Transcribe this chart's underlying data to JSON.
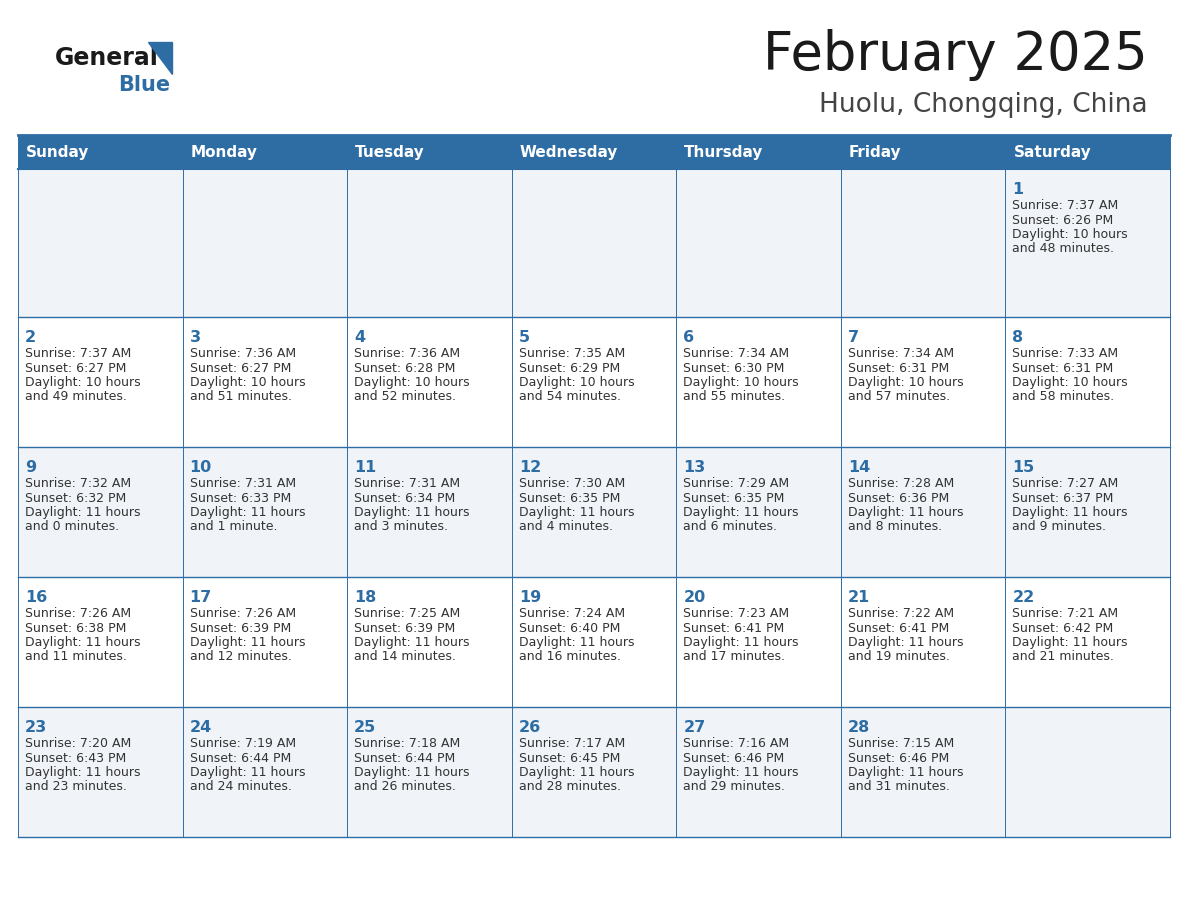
{
  "title": "February 2025",
  "subtitle": "Huolu, Chongqing, China",
  "days_of_week": [
    "Sunday",
    "Monday",
    "Tuesday",
    "Wednesday",
    "Thursday",
    "Friday",
    "Saturday"
  ],
  "header_bg": "#2E6DA4",
  "header_text": "#FFFFFF",
  "cell_bg_light": "#F0F4F8",
  "cell_bg_white": "#FFFFFF",
  "border_color": "#2E6DA4",
  "title_color": "#1a1a1a",
  "subtitle_color": "#444444",
  "day_num_color": "#2E6DA4",
  "cell_text_color": "#333333",
  "logo_general_color": "#1a1a1a",
  "logo_blue_color": "#2E6DA4",
  "calendar_data": [
    [
      null,
      null,
      null,
      null,
      null,
      null,
      {
        "day": 1,
        "sunrise": "7:37 AM",
        "sunset": "6:26 PM",
        "daylight": "10 hours\nand 48 minutes."
      }
    ],
    [
      {
        "day": 2,
        "sunrise": "7:37 AM",
        "sunset": "6:27 PM",
        "daylight": "10 hours\nand 49 minutes."
      },
      {
        "day": 3,
        "sunrise": "7:36 AM",
        "sunset": "6:27 PM",
        "daylight": "10 hours\nand 51 minutes."
      },
      {
        "day": 4,
        "sunrise": "7:36 AM",
        "sunset": "6:28 PM",
        "daylight": "10 hours\nand 52 minutes."
      },
      {
        "day": 5,
        "sunrise": "7:35 AM",
        "sunset": "6:29 PM",
        "daylight": "10 hours\nand 54 minutes."
      },
      {
        "day": 6,
        "sunrise": "7:34 AM",
        "sunset": "6:30 PM",
        "daylight": "10 hours\nand 55 minutes."
      },
      {
        "day": 7,
        "sunrise": "7:34 AM",
        "sunset": "6:31 PM",
        "daylight": "10 hours\nand 57 minutes."
      },
      {
        "day": 8,
        "sunrise": "7:33 AM",
        "sunset": "6:31 PM",
        "daylight": "10 hours\nand 58 minutes."
      }
    ],
    [
      {
        "day": 9,
        "sunrise": "7:32 AM",
        "sunset": "6:32 PM",
        "daylight": "11 hours\nand 0 minutes."
      },
      {
        "day": 10,
        "sunrise": "7:31 AM",
        "sunset": "6:33 PM",
        "daylight": "11 hours\nand 1 minute."
      },
      {
        "day": 11,
        "sunrise": "7:31 AM",
        "sunset": "6:34 PM",
        "daylight": "11 hours\nand 3 minutes."
      },
      {
        "day": 12,
        "sunrise": "7:30 AM",
        "sunset": "6:35 PM",
        "daylight": "11 hours\nand 4 minutes."
      },
      {
        "day": 13,
        "sunrise": "7:29 AM",
        "sunset": "6:35 PM",
        "daylight": "11 hours\nand 6 minutes."
      },
      {
        "day": 14,
        "sunrise": "7:28 AM",
        "sunset": "6:36 PM",
        "daylight": "11 hours\nand 8 minutes."
      },
      {
        "day": 15,
        "sunrise": "7:27 AM",
        "sunset": "6:37 PM",
        "daylight": "11 hours\nand 9 minutes."
      }
    ],
    [
      {
        "day": 16,
        "sunrise": "7:26 AM",
        "sunset": "6:38 PM",
        "daylight": "11 hours\nand 11 minutes."
      },
      {
        "day": 17,
        "sunrise": "7:26 AM",
        "sunset": "6:39 PM",
        "daylight": "11 hours\nand 12 minutes."
      },
      {
        "day": 18,
        "sunrise": "7:25 AM",
        "sunset": "6:39 PM",
        "daylight": "11 hours\nand 14 minutes."
      },
      {
        "day": 19,
        "sunrise": "7:24 AM",
        "sunset": "6:40 PM",
        "daylight": "11 hours\nand 16 minutes."
      },
      {
        "day": 20,
        "sunrise": "7:23 AM",
        "sunset": "6:41 PM",
        "daylight": "11 hours\nand 17 minutes."
      },
      {
        "day": 21,
        "sunrise": "7:22 AM",
        "sunset": "6:41 PM",
        "daylight": "11 hours\nand 19 minutes."
      },
      {
        "day": 22,
        "sunrise": "7:21 AM",
        "sunset": "6:42 PM",
        "daylight": "11 hours\nand 21 minutes."
      }
    ],
    [
      {
        "day": 23,
        "sunrise": "7:20 AM",
        "sunset": "6:43 PM",
        "daylight": "11 hours\nand 23 minutes."
      },
      {
        "day": 24,
        "sunrise": "7:19 AM",
        "sunset": "6:44 PM",
        "daylight": "11 hours\nand 24 minutes."
      },
      {
        "day": 25,
        "sunrise": "7:18 AM",
        "sunset": "6:44 PM",
        "daylight": "11 hours\nand 26 minutes."
      },
      {
        "day": 26,
        "sunrise": "7:17 AM",
        "sunset": "6:45 PM",
        "daylight": "11 hours\nand 28 minutes."
      },
      {
        "day": 27,
        "sunrise": "7:16 AM",
        "sunset": "6:46 PM",
        "daylight": "11 hours\nand 29 minutes."
      },
      {
        "day": 28,
        "sunrise": "7:15 AM",
        "sunset": "6:46 PM",
        "daylight": "11 hours\nand 31 minutes."
      },
      null
    ]
  ]
}
